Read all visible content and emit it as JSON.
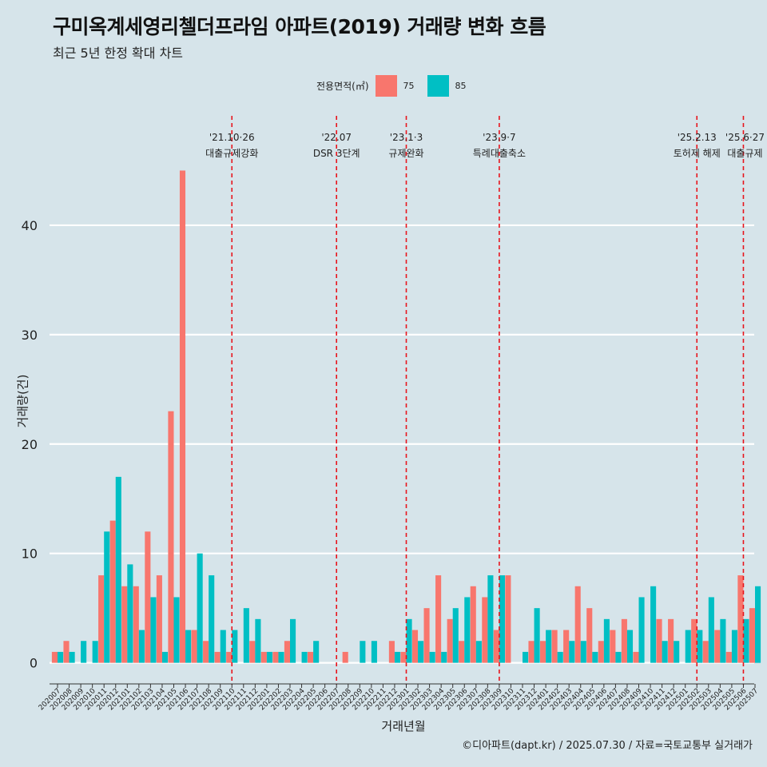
{
  "header": {
    "title": "구미옥계세영리첼더프라임 아파트(2019) 거래량 변화 흐름",
    "subtitle": "최근 5년 한정 확대 차트"
  },
  "legend": {
    "title": "전용면적(㎡)",
    "items": [
      {
        "label": "75",
        "color": "#f8766d"
      },
      {
        "label": "85",
        "color": "#00bfc4"
      }
    ]
  },
  "axes": {
    "xlabel": "거래년월",
    "ylabel": "거래량(건)"
  },
  "caption": "©디아파트(dapt.kr) / 2025.07.30 / 자료=국토교통부 실거래가",
  "chart_data": {
    "type": "bar",
    "ylim": [
      -2,
      50
    ],
    "yticks": [
      0,
      10,
      20,
      30,
      40
    ],
    "grid": "horizontal",
    "legend_position": "top",
    "categories": [
      "202007",
      "202008",
      "202009",
      "202010",
      "202011",
      "202012",
      "202101",
      "202102",
      "202103",
      "202104",
      "202105",
      "202106",
      "202107",
      "202108",
      "202109",
      "202110",
      "202111",
      "202112",
      "202201",
      "202202",
      "202203",
      "202204",
      "202205",
      "202206",
      "202207",
      "202208",
      "202209",
      "202210",
      "202211",
      "202212",
      "202301",
      "202302",
      "202303",
      "202304",
      "202305",
      "202306",
      "202307",
      "202308",
      "202309",
      "202310",
      "202311",
      "202312",
      "202401",
      "202402",
      "202403",
      "202404",
      "202405",
      "202406",
      "202407",
      "202408",
      "202409",
      "202410",
      "202411",
      "202412",
      "202501",
      "202502",
      "202503",
      "202504",
      "202505",
      "202506",
      "202507"
    ],
    "series": [
      {
        "name": "75",
        "color": "#f8766d",
        "values": [
          1,
          2,
          0,
          0,
          8,
          13,
          7,
          7,
          12,
          8,
          23,
          45,
          3,
          2,
          1,
          1,
          0,
          2,
          1,
          1,
          2,
          0,
          1,
          0,
          0,
          1,
          0,
          0,
          0,
          2,
          1,
          3,
          5,
          8,
          4,
          2,
          7,
          6,
          3,
          8,
          0,
          2,
          2,
          3,
          3,
          7,
          5,
          2,
          3,
          4,
          1,
          0,
          4,
          4,
          0,
          4,
          2,
          3,
          1,
          8,
          5
        ]
      },
      {
        "name": "85",
        "color": "#00bfc4",
        "values": [
          1,
          1,
          2,
          2,
          12,
          17,
          9,
          3,
          6,
          1,
          6,
          3,
          10,
          8,
          3,
          3,
          5,
          4,
          1,
          1,
          4,
          1,
          2,
          0,
          0,
          0,
          2,
          2,
          0,
          1,
          4,
          2,
          1,
          1,
          5,
          6,
          2,
          8,
          8,
          0,
          1,
          5,
          3,
          1,
          2,
          2,
          1,
          4,
          1,
          3,
          6,
          7,
          2,
          2,
          3,
          3,
          6,
          4,
          3,
          4,
          7
        ]
      }
    ],
    "annotations": [
      {
        "at": "202110",
        "date": "'21.10·26",
        "text": "대출규제강화"
      },
      {
        "at": "202207",
        "date": "'22.07",
        "text": "DSR 3단계"
      },
      {
        "at": "202301",
        "date": "'23.1·3",
        "text": "규제완화"
      },
      {
        "at": "202309",
        "date": "'23.9·7",
        "text": "특례대출축소"
      },
      {
        "at": "202502",
        "date": "'25.2.13",
        "text": "토허제 해제"
      },
      {
        "at": "202506",
        "date": "'25.6·27",
        "text": "대출규제"
      }
    ]
  }
}
